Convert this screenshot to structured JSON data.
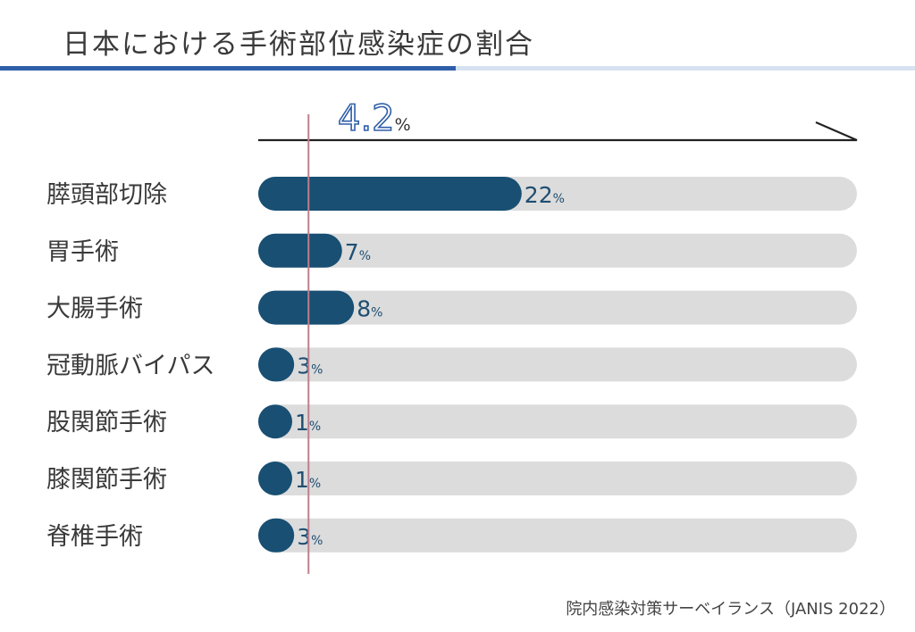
{
  "title": "日本における手術部位感染症の割合",
  "source": "院内感染対策サーベイランス（JANIS 2022）",
  "colors": {
    "bar": "#184f73",
    "track": "#dcdcdc",
    "ref_line": "#c07e8c",
    "ref_text_stroke": "#2f5fa8",
    "value_text": "#1f4e72",
    "label_text": "#3a3a3a",
    "title_rule_dark": "#2f5fa8",
    "title_rule_light": "#d6e2f1"
  },
  "chart_data": {
    "type": "bar",
    "orientation": "horizontal",
    "categories": [
      "膵頭部切除",
      "胃手術",
      "大腸手術",
      "冠動脈バイパス",
      "股関節手術",
      "膝関節手術",
      "脊椎手術"
    ],
    "values": [
      22,
      7,
      8,
      3,
      1,
      1,
      3
    ],
    "value_labels": [
      "22",
      "7",
      "8",
      "3",
      "1",
      "1",
      "3"
    ],
    "unit": "%",
    "xlim": [
      0,
      50
    ],
    "reference": {
      "value": 4.2,
      "label": "4.2",
      "unit": "%"
    }
  }
}
